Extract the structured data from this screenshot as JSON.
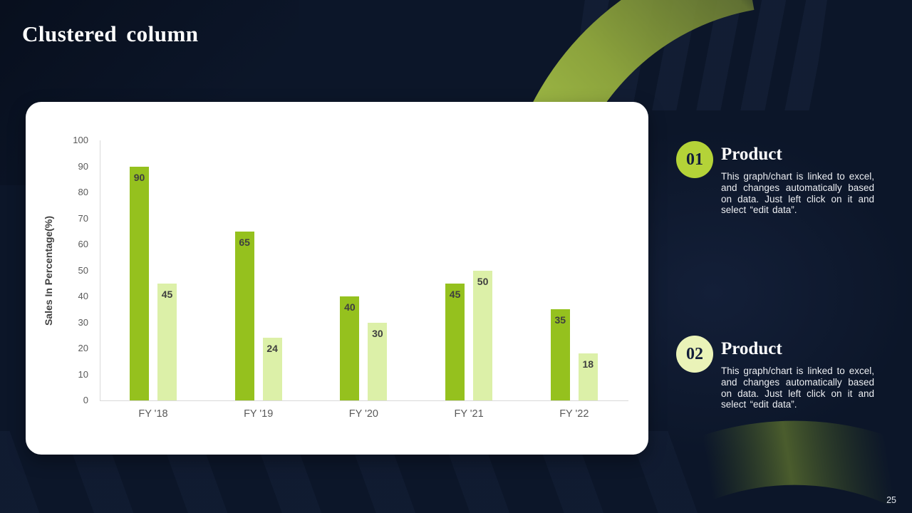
{
  "slide": {
    "title": "Clustered column",
    "page_number": "25"
  },
  "chart_data": {
    "type": "bar",
    "title": "",
    "categories": [
      "FY '18",
      "FY '19",
      "FY '20",
      "FY '21",
      "FY '22"
    ],
    "series": [
      {
        "name": "series-1",
        "color": "#95c11e",
        "values": [
          90,
          65,
          40,
          45,
          35
        ]
      },
      {
        "name": "series-2",
        "color": "#dcf0a8",
        "values": [
          45,
          24,
          30,
          50,
          18
        ]
      }
    ],
    "xlabel": "",
    "ylabel": "Sales In Percentage(%)",
    "ylim": [
      0,
      100
    ],
    "ytick_step": 10,
    "grid": false,
    "legend": "none",
    "data_labels": "inside-end",
    "data_label_color": "#3f3f3f",
    "axis_line_color": "#d9d9d9",
    "tick_label_color": "#595959"
  },
  "callouts": [
    {
      "number": "01",
      "title": "Product",
      "description": "This graph/chart is linked to excel, and changes automatically based on data. Just left click on it and select “edit data”.",
      "badge_color": "#b4d338"
    },
    {
      "number": "02",
      "title": "Product",
      "description": "This graph/chart is linked to excel, and changes automatically based on data. Just left click on it and select “edit data”.",
      "badge_color": "#eaf3b8"
    }
  ],
  "colors": {
    "background_navy": "#0c1629",
    "accent_dark_green": "#95c11e",
    "accent_light_green": "#dcf0a8",
    "arc_green_bright": "#a3bf48",
    "arc_green_olive": "#6e7f33",
    "card_background": "#ffffff"
  }
}
